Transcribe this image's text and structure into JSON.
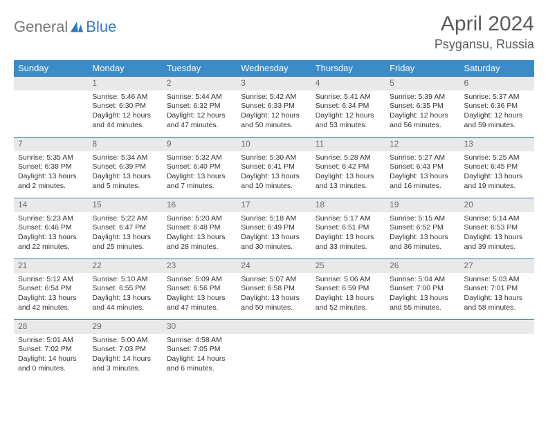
{
  "brand": {
    "general": "General",
    "blue": "Blue"
  },
  "title": "April 2024",
  "location": "Psygansu, Russia",
  "colors": {
    "header_bg": "#3b8bc9",
    "daynum_bg": "#e9e9e9",
    "daynum_border": "#2f7bbf",
    "text": "#333333",
    "muted": "#6a6a6a"
  },
  "weekdays": [
    "Sunday",
    "Monday",
    "Tuesday",
    "Wednesday",
    "Thursday",
    "Friday",
    "Saturday"
  ],
  "grid": [
    [
      null,
      {
        "n": "1",
        "sr": "Sunrise: 5:46 AM",
        "ss": "Sunset: 6:30 PM",
        "d1": "Daylight: 12 hours",
        "d2": "and 44 minutes."
      },
      {
        "n": "2",
        "sr": "Sunrise: 5:44 AM",
        "ss": "Sunset: 6:32 PM",
        "d1": "Daylight: 12 hours",
        "d2": "and 47 minutes."
      },
      {
        "n": "3",
        "sr": "Sunrise: 5:42 AM",
        "ss": "Sunset: 6:33 PM",
        "d1": "Daylight: 12 hours",
        "d2": "and 50 minutes."
      },
      {
        "n": "4",
        "sr": "Sunrise: 5:41 AM",
        "ss": "Sunset: 6:34 PM",
        "d1": "Daylight: 12 hours",
        "d2": "and 53 minutes."
      },
      {
        "n": "5",
        "sr": "Sunrise: 5:39 AM",
        "ss": "Sunset: 6:35 PM",
        "d1": "Daylight: 12 hours",
        "d2": "and 56 minutes."
      },
      {
        "n": "6",
        "sr": "Sunrise: 5:37 AM",
        "ss": "Sunset: 6:36 PM",
        "d1": "Daylight: 12 hours",
        "d2": "and 59 minutes."
      }
    ],
    [
      {
        "n": "7",
        "sr": "Sunrise: 5:35 AM",
        "ss": "Sunset: 6:38 PM",
        "d1": "Daylight: 13 hours",
        "d2": "and 2 minutes."
      },
      {
        "n": "8",
        "sr": "Sunrise: 5:34 AM",
        "ss": "Sunset: 6:39 PM",
        "d1": "Daylight: 13 hours",
        "d2": "and 5 minutes."
      },
      {
        "n": "9",
        "sr": "Sunrise: 5:32 AM",
        "ss": "Sunset: 6:40 PM",
        "d1": "Daylight: 13 hours",
        "d2": "and 7 minutes."
      },
      {
        "n": "10",
        "sr": "Sunrise: 5:30 AM",
        "ss": "Sunset: 6:41 PM",
        "d1": "Daylight: 13 hours",
        "d2": "and 10 minutes."
      },
      {
        "n": "11",
        "sr": "Sunrise: 5:28 AM",
        "ss": "Sunset: 6:42 PM",
        "d1": "Daylight: 13 hours",
        "d2": "and 13 minutes."
      },
      {
        "n": "12",
        "sr": "Sunrise: 5:27 AM",
        "ss": "Sunset: 6:43 PM",
        "d1": "Daylight: 13 hours",
        "d2": "and 16 minutes."
      },
      {
        "n": "13",
        "sr": "Sunrise: 5:25 AM",
        "ss": "Sunset: 6:45 PM",
        "d1": "Daylight: 13 hours",
        "d2": "and 19 minutes."
      }
    ],
    [
      {
        "n": "14",
        "sr": "Sunrise: 5:23 AM",
        "ss": "Sunset: 6:46 PM",
        "d1": "Daylight: 13 hours",
        "d2": "and 22 minutes."
      },
      {
        "n": "15",
        "sr": "Sunrise: 5:22 AM",
        "ss": "Sunset: 6:47 PM",
        "d1": "Daylight: 13 hours",
        "d2": "and 25 minutes."
      },
      {
        "n": "16",
        "sr": "Sunrise: 5:20 AM",
        "ss": "Sunset: 6:48 PM",
        "d1": "Daylight: 13 hours",
        "d2": "and 28 minutes."
      },
      {
        "n": "17",
        "sr": "Sunrise: 5:18 AM",
        "ss": "Sunset: 6:49 PM",
        "d1": "Daylight: 13 hours",
        "d2": "and 30 minutes."
      },
      {
        "n": "18",
        "sr": "Sunrise: 5:17 AM",
        "ss": "Sunset: 6:51 PM",
        "d1": "Daylight: 13 hours",
        "d2": "and 33 minutes."
      },
      {
        "n": "19",
        "sr": "Sunrise: 5:15 AM",
        "ss": "Sunset: 6:52 PM",
        "d1": "Daylight: 13 hours",
        "d2": "and 36 minutes."
      },
      {
        "n": "20",
        "sr": "Sunrise: 5:14 AM",
        "ss": "Sunset: 6:53 PM",
        "d1": "Daylight: 13 hours",
        "d2": "and 39 minutes."
      }
    ],
    [
      {
        "n": "21",
        "sr": "Sunrise: 5:12 AM",
        "ss": "Sunset: 6:54 PM",
        "d1": "Daylight: 13 hours",
        "d2": "and 42 minutes."
      },
      {
        "n": "22",
        "sr": "Sunrise: 5:10 AM",
        "ss": "Sunset: 6:55 PM",
        "d1": "Daylight: 13 hours",
        "d2": "and 44 minutes."
      },
      {
        "n": "23",
        "sr": "Sunrise: 5:09 AM",
        "ss": "Sunset: 6:56 PM",
        "d1": "Daylight: 13 hours",
        "d2": "and 47 minutes."
      },
      {
        "n": "24",
        "sr": "Sunrise: 5:07 AM",
        "ss": "Sunset: 6:58 PM",
        "d1": "Daylight: 13 hours",
        "d2": "and 50 minutes."
      },
      {
        "n": "25",
        "sr": "Sunrise: 5:06 AM",
        "ss": "Sunset: 6:59 PM",
        "d1": "Daylight: 13 hours",
        "d2": "and 52 minutes."
      },
      {
        "n": "26",
        "sr": "Sunrise: 5:04 AM",
        "ss": "Sunset: 7:00 PM",
        "d1": "Daylight: 13 hours",
        "d2": "and 55 minutes."
      },
      {
        "n": "27",
        "sr": "Sunrise: 5:03 AM",
        "ss": "Sunset: 7:01 PM",
        "d1": "Daylight: 13 hours",
        "d2": "and 58 minutes."
      }
    ],
    [
      {
        "n": "28",
        "sr": "Sunrise: 5:01 AM",
        "ss": "Sunset: 7:02 PM",
        "d1": "Daylight: 14 hours",
        "d2": "and 0 minutes."
      },
      {
        "n": "29",
        "sr": "Sunrise: 5:00 AM",
        "ss": "Sunset: 7:03 PM",
        "d1": "Daylight: 14 hours",
        "d2": "and 3 minutes."
      },
      {
        "n": "30",
        "sr": "Sunrise: 4:58 AM",
        "ss": "Sunset: 7:05 PM",
        "d1": "Daylight: 14 hours",
        "d2": "and 6 minutes."
      },
      null,
      null,
      null,
      null
    ]
  ]
}
